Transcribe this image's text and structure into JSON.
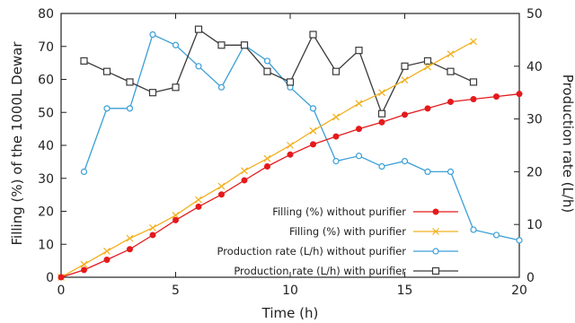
{
  "chart_data": {
    "type": "line",
    "xlabel": "Time (h)",
    "ylabel_left": "Filling (%) of the 1000L Dewar",
    "ylabel_right": "Production rate (L/h)",
    "xlim": [
      0,
      20
    ],
    "ylim_left": [
      0,
      80
    ],
    "ylim_right": [
      0,
      50
    ],
    "x_ticks": [
      0,
      5,
      10,
      15,
      20
    ],
    "y_left_ticks": [
      0,
      10,
      20,
      30,
      40,
      50,
      60,
      70,
      80
    ],
    "y_right_ticks": [
      0,
      10,
      20,
      30,
      40,
      50
    ],
    "grid": false,
    "legend_position": "bottom-right",
    "series": [
      {
        "name": "Filling (%) without purifier",
        "axis": "left",
        "color": "#e41a1c",
        "marker": "filled-circle",
        "x": [
          0,
          1,
          2,
          3,
          4,
          5,
          6,
          7,
          8,
          9,
          10,
          11,
          12,
          13,
          14,
          15,
          16,
          17,
          18,
          19,
          20
        ],
        "y": [
          0,
          2.2,
          5.3,
          8.5,
          12.8,
          17.3,
          21.4,
          25.1,
          29.4,
          33.6,
          37.2,
          40.3,
          42.7,
          45.0,
          47.0,
          49.3,
          51.2,
          53.2,
          54.0,
          54.8,
          55.6
        ]
      },
      {
        "name": "Filling (%) with purifier",
        "axis": "left",
        "color": "#f2b01e",
        "marker": "cross",
        "x": [
          0,
          1,
          2,
          3,
          4,
          5,
          6,
          7,
          8,
          9,
          10,
          11,
          12,
          13,
          14,
          15,
          16,
          17,
          18
        ],
        "y": [
          0,
          3.9,
          7.9,
          11.8,
          15.0,
          18.8,
          23.5,
          27.6,
          32.3,
          36.0,
          40.0,
          44.4,
          48.6,
          52.7,
          56.0,
          59.8,
          63.8,
          67.7,
          71.5
        ]
      },
      {
        "name": "Production rate (L/h) without purifier",
        "axis": "right",
        "color": "#3a9fd6",
        "marker": "open-circle",
        "x": [
          1,
          2,
          3,
          4,
          5,
          6,
          7,
          8,
          9,
          10,
          11,
          12,
          13,
          14,
          15,
          16,
          17,
          18,
          19,
          20
        ],
        "y": [
          20.0,
          32.0,
          32.0,
          46.0,
          44.0,
          40.0,
          36.0,
          44.0,
          41.0,
          36.0,
          32.0,
          22.0,
          23.0,
          21.0,
          22.0,
          20.0,
          20.0,
          9.0,
          8.0,
          7.0
        ]
      },
      {
        "name": "Production rate (L/h) with purifier",
        "axis": "right",
        "color": "#3a3a3a",
        "marker": "open-square",
        "x": [
          1,
          2,
          3,
          4,
          5,
          6,
          7,
          8,
          9,
          10,
          11,
          12,
          13,
          14,
          15,
          16,
          17,
          18
        ],
        "y": [
          41.0,
          39.0,
          37.0,
          35.0,
          36.0,
          47.0,
          44.0,
          44.0,
          39.0,
          37.0,
          46.0,
          39.0,
          43.0,
          31.0,
          40.0,
          41.0,
          39.0,
          37.0
        ]
      }
    ]
  }
}
